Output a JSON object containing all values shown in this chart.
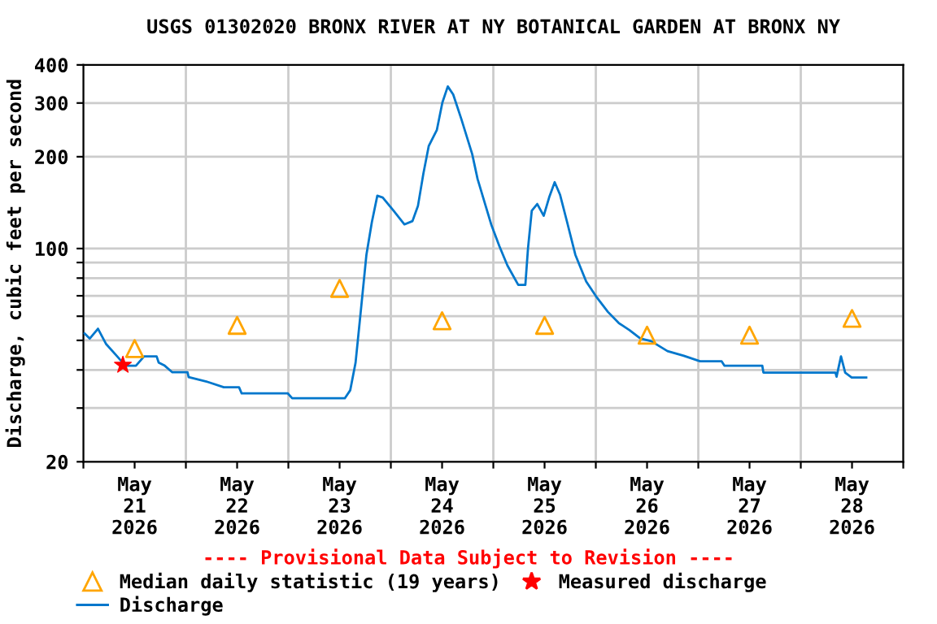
{
  "chart_data": {
    "type": "line",
    "title": "USGS 01302020 BRONX RIVER AT NY BOTANICAL GARDEN AT BRONX NY",
    "ylabel": "Discharge, cubic feet per second",
    "log": "y",
    "grid": true,
    "legend": "bottom",
    "xlim": [
      "2026-05-21T00:00",
      "2026-05-29T00:00"
    ],
    "xticks": [
      {
        "value": "2026-05-21T00:00",
        "label": null
      },
      {
        "value": "2026-05-21T12:00",
        "label": "May\n21\n2026"
      },
      {
        "value": "2026-05-22T00:00",
        "label": null
      },
      {
        "value": "2026-05-22T12:00",
        "label": "May\n22\n2026"
      },
      {
        "value": "2026-05-23T00:00",
        "label": null
      },
      {
        "value": "2026-05-23T12:00",
        "label": "May\n23\n2026"
      },
      {
        "value": "2026-05-24T00:00",
        "label": null
      },
      {
        "value": "2026-05-24T12:00",
        "label": "May\n24\n2026"
      },
      {
        "value": "2026-05-25T00:00",
        "label": null
      },
      {
        "value": "2026-05-25T12:00",
        "label": "May\n25\n2026"
      },
      {
        "value": "2026-05-26T00:00",
        "label": null
      },
      {
        "value": "2026-05-26T12:00",
        "label": "May\n26\n2026"
      },
      {
        "value": "2026-05-27T00:00",
        "label": null
      },
      {
        "value": "2026-05-27T12:00",
        "label": "May\n27\n2026"
      },
      {
        "value": "2026-05-28T00:00",
        "label": null
      },
      {
        "value": "2026-05-28T12:00",
        "label": "May\n28\n2026"
      },
      {
        "value": "2026-05-29T00:00",
        "label": null
      }
    ],
    "ylim": [
      20,
      400
    ],
    "yticks": [
      20,
      {
        "value": 30,
        "label": null
      },
      {
        "value": 40,
        "label": null
      },
      {
        "value": 50,
        "label": null
      },
      {
        "value": 60,
        "label": null
      },
      {
        "value": 70,
        "label": null
      },
      {
        "value": 80,
        "label": null
      },
      {
        "value": 90,
        "label": null
      },
      100,
      200,
      300,
      400
    ],
    "annotations": [
      "---- Provisional Data Subject to Revision ----"
    ],
    "series": [
      {
        "name": "Median daily statistic (19 years)",
        "type": "scatter",
        "marker": "triangle",
        "color": "#ffa500",
        "x": [
          "2026-05-21T12:00",
          "2026-05-22T12:00",
          "2026-05-23T12:00",
          "2026-05-24T12:00",
          "2026-05-25T12:00",
          "2026-05-26T12:00",
          "2026-05-27T12:00",
          "2026-05-28T12:00"
        ],
        "values": [
          47,
          56,
          74,
          58,
          56,
          52,
          52,
          59
        ]
      },
      {
        "name": "Discharge",
        "color": "#0077cc",
        "x": [
          "2026-05-21T00:15",
          "2026-05-21T01:30",
          "2026-05-21T03:25",
          "2026-05-21T05:20",
          "2026-05-21T07:55",
          "2026-05-21T09:50",
          "2026-05-21T12:18",
          "2026-05-21T14:13",
          "2026-05-21T17:09",
          "2026-05-21T17:38",
          "2026-05-21T19:03",
          "2026-05-21T20:50",
          "2026-05-22T00:23",
          "2026-05-22T00:39",
          "2026-05-22T05:13",
          "2026-05-22T08:53",
          "2026-05-22T12:27",
          "2026-05-22T13:04",
          "2026-05-22T23:53",
          "2026-05-23T00:53",
          "2026-05-23T13:13",
          "2026-05-23T14:29",
          "2026-05-23T15:44",
          "2026-05-23T17:01",
          "2026-05-23T18:17",
          "2026-05-23T19:33",
          "2026-05-23T20:50",
          "2026-05-23T22:06",
          "2026-05-24T00:39",
          "2026-05-24T03:10",
          "2026-05-24T05:04",
          "2026-05-24T06:21",
          "2026-05-24T07:37",
          "2026-05-24T08:53",
          "2026-05-24T10:47",
          "2026-05-24T12:04",
          "2026-05-24T13:20",
          "2026-05-24T14:36",
          "2026-05-24T16:30",
          "2026-05-24T19:03",
          "2026-05-24T20:19",
          "2026-05-24T23:30",
          "2026-05-25T01:24",
          "2026-05-25T03:18",
          "2026-05-25T05:50",
          "2026-05-25T07:30",
          "2026-05-25T08:07",
          "2026-05-25T09:00",
          "2026-05-25T10:17",
          "2026-05-25T11:48",
          "2026-05-25T13:04",
          "2026-05-25T14:22",
          "2026-05-25T15:38",
          "2026-05-25T17:17",
          "2026-05-25T19:12",
          "2026-05-25T21:45",
          "2026-05-26T00:17",
          "2026-05-26T02:50",
          "2026-05-26T05:22",
          "2026-05-26T07:54",
          "2026-05-26T10:26",
          "2026-05-26T12:58",
          "2026-05-26T16:47",
          "2026-05-26T20:36",
          "2026-05-27T00:24",
          "2026-05-27T05:28",
          "2026-05-27T06:07",
          "2026-05-27T14:59",
          "2026-05-27T15:15",
          "2026-05-28T08:07",
          "2026-05-28T08:23",
          "2026-05-28T09:25",
          "2026-05-28T10:24",
          "2026-05-28T11:55",
          "2026-05-28T15:20"
        ],
        "values": [
          52.7,
          50.7,
          54.6,
          48.6,
          44.3,
          41.3,
          41.3,
          44.3,
          44.3,
          42.3,
          41.3,
          39.3,
          39.3,
          37.9,
          36.5,
          35.1,
          35.1,
          33.5,
          33.5,
          32.3,
          32.3,
          34.3,
          42.2,
          63.4,
          95.5,
          122,
          149,
          147,
          133,
          120,
          123,
          138,
          176,
          217,
          245,
          301,
          340,
          320,
          266,
          204,
          169,
          120,
          102,
          88,
          76,
          76,
          100,
          133,
          140,
          128,
          147,
          165,
          150,
          122,
          95.5,
          78,
          69,
          62,
          57,
          54,
          50.7,
          49.7,
          46.1,
          44.5,
          42.7,
          42.7,
          41.3,
          41.3,
          39.2,
          39.2,
          38,
          44.3,
          39.2,
          37.8,
          37.8
        ]
      },
      {
        "name": "Measured discharge",
        "type": "scatter",
        "marker": "star",
        "color": "#ff0000",
        "x": [
          "2026-05-21T09:15"
        ],
        "values": [
          41.5
        ]
      }
    ]
  }
}
